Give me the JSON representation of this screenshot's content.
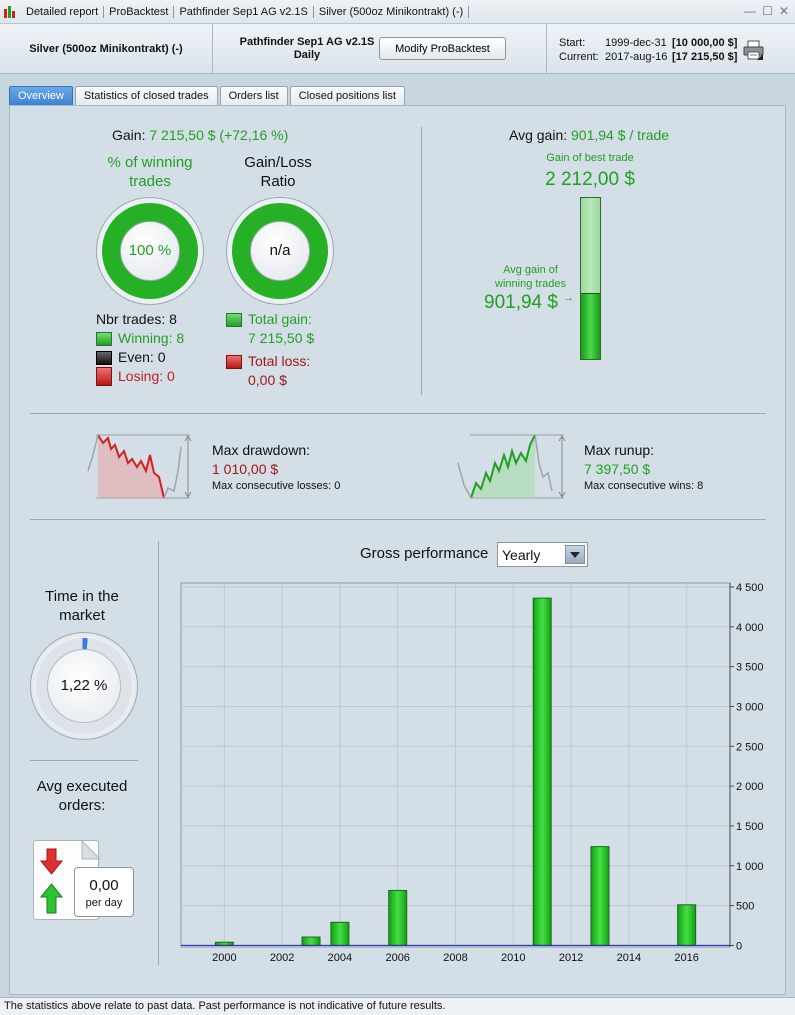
{
  "titlebar": {
    "segments": [
      "Detailed report",
      "ProBacktest",
      "Pathfinder Sep1 AG v2.1S",
      "Silver (500oz Minikontrakt) (-)"
    ],
    "controls": [
      "—",
      "☐",
      "✕"
    ]
  },
  "header": {
    "instrument": "Silver (500oz Minikontrakt) (-)",
    "system_name": "Pathfinder Sep1 AG v2.1S",
    "timeframe": "Daily",
    "modify_button": "Modify ProBacktest",
    "start_label": "Start:",
    "start_date": "1999-dec-31",
    "start_value": "[10 000,00 $]",
    "current_label": "Current:",
    "current_date": "2017-aug-16",
    "current_value": "[17 215,50 $]"
  },
  "tabs": [
    "Overview",
    "Statistics of closed trades",
    "Orders list",
    "Closed positions list"
  ],
  "gain": {
    "label": "Gain:",
    "value": "7 215,50 $ (+72,16 %)",
    "pct_winning_label": "% of winning trades",
    "pct_winning_value": "100 %",
    "pct_winning_fraction": 1.0,
    "ratio_label": "Gain/Loss Ratio",
    "ratio_value": "n/a",
    "nbr_trades": "Nbr trades: 8",
    "winning": "Winning: 8",
    "even": "Even: 0",
    "losing": "Losing: 0",
    "total_gain_label": "Total gain:",
    "total_gain_value": "7 215,50 $",
    "total_loss_label": "Total loss:",
    "total_loss_value": "0,00 $"
  },
  "avg": {
    "label": "Avg gain:",
    "value": "901,94 $ / trade",
    "best_label": "Gain of best trade",
    "best_value": "2 212,00 $",
    "avg_win_label": "Avg gain of winning trades",
    "avg_win_value": "901,94 $",
    "fill_fraction": 0.41
  },
  "drawdown": {
    "label": "Max drawdown:",
    "value": "1 010,00 $",
    "consec": "Max consecutive losses: 0"
  },
  "runup": {
    "label": "Max runup:",
    "value": "7 397,50 $",
    "consec": "Max consecutive wins: 8"
  },
  "time_market": {
    "label": "Time in the market",
    "value": "1,22 %",
    "fraction": 0.0122
  },
  "avg_exec": {
    "label": "Avg executed orders:",
    "value": "0,00",
    "unit": "per day"
  },
  "gross": {
    "label": "Gross performance",
    "period": "Yearly"
  },
  "chart_data": {
    "type": "bar",
    "title": "Gross performance",
    "x_ticks": [
      "2000",
      "2002",
      "2004",
      "2006",
      "2008",
      "2010",
      "2012",
      "2014",
      "2016"
    ],
    "y_ticks": [
      "0",
      "500",
      "1 000",
      "1 500",
      "2 000",
      "2 500",
      "3 000",
      "3 500",
      "4 000",
      "4 500"
    ],
    "ylim": [
      -20,
      4550
    ],
    "xlim": [
      1998.5,
      2017.5
    ],
    "categories": [
      2000,
      2003,
      2004,
      2006,
      2011,
      2013,
      2016
    ],
    "values": [
      40,
      105,
      290,
      690,
      4360,
      1240,
      510
    ],
    "colors": {
      "bar": "#22bb22",
      "zero_line": "#2020c0"
    }
  },
  "footer": {
    "text": "The statistics above relate to past data. Past performance is not indicative of future results."
  }
}
